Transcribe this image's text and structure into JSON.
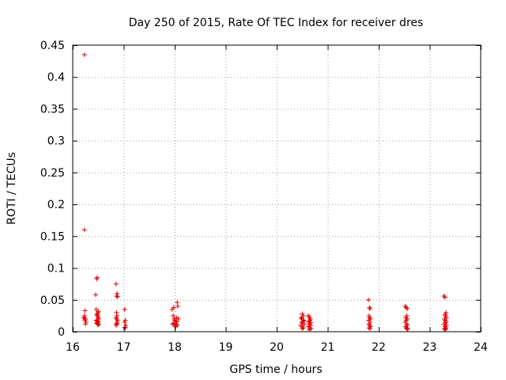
{
  "chart_data": {
    "type": "scatter",
    "title": "Day 250 of 2015, Rate Of TEC Index for receiver dres",
    "xlabel": "GPS time / hours",
    "ylabel": "ROTI / TECUs",
    "xlim": [
      16,
      24
    ],
    "ylim": [
      0,
      0.45
    ],
    "xticks": [
      16,
      17,
      18,
      19,
      20,
      21,
      22,
      23,
      24
    ],
    "yticks": [
      0,
      0.05,
      0.1,
      0.15,
      0.2,
      0.25,
      0.3,
      0.35,
      0.4,
      0.45
    ],
    "xtick_labels": [
      "16",
      "17",
      "18",
      "19",
      "20",
      "21",
      "22",
      "23",
      "24"
    ],
    "ytick_labels": [
      "0",
      "0.05",
      "0.1",
      "0.15",
      "0.2",
      "0.25",
      "0.3",
      "0.35",
      "0.4",
      "0.45"
    ],
    "grid": true,
    "marker": "+",
    "color": "#e00000",
    "series": [
      {
        "name": "ROTI",
        "x": [
          16.23,
          16.23,
          16.24,
          16.23,
          16.22,
          16.25,
          16.24,
          16.26,
          16.25,
          16.22,
          16.24,
          16.45,
          16.47,
          16.48,
          16.46,
          16.5,
          16.5,
          16.48,
          16.47,
          16.49,
          16.5,
          16.51,
          16.46,
          16.48,
          16.49,
          16.5,
          16.47,
          16.48,
          16.5,
          16.49,
          16.51,
          16.85,
          16.87,
          16.86,
          16.88,
          16.86,
          16.87,
          16.85,
          16.86,
          16.88,
          16.87,
          16.86,
          16.87,
          16.85,
          17.02,
          17.03,
          17.02,
          17.04,
          17.03,
          17.02,
          17.95,
          17.98,
          17.97,
          17.99,
          18.0,
          18.02,
          18.05,
          18.06,
          18.04,
          18.03,
          17.96,
          18.0,
          18.02,
          18.05,
          17.98,
          18.04,
          18.07,
          20.5,
          20.52,
          20.48,
          20.5,
          20.53,
          20.49,
          20.51,
          20.54,
          20.47,
          20.5,
          20.52,
          20.5,
          20.53,
          20.49,
          20.62,
          20.64,
          20.66,
          20.65,
          20.63,
          20.67,
          20.64,
          20.66,
          20.62,
          20.65,
          20.67,
          20.64,
          20.63,
          20.66,
          21.8,
          21.82,
          21.83,
          21.81,
          21.82,
          21.84,
          21.8,
          21.83,
          21.81,
          21.82,
          21.84,
          21.81,
          21.83,
          22.52,
          22.54,
          22.56,
          22.55,
          22.53,
          22.56,
          22.54,
          22.52,
          22.55,
          22.56,
          22.53,
          22.54,
          22.55,
          22.57,
          23.28,
          23.3,
          23.32,
          23.3,
          23.31,
          23.33,
          23.29,
          23.3,
          23.32,
          23.31,
          23.28,
          23.33,
          23.3,
          23.32,
          23.29,
          23.31,
          23.3
        ],
        "y": [
          0.435,
          0.16,
          0.033,
          0.025,
          0.022,
          0.02,
          0.018,
          0.015,
          0.012,
          0.022,
          0.02,
          0.058,
          0.083,
          0.085,
          0.035,
          0.032,
          0.03,
          0.028,
          0.026,
          0.025,
          0.022,
          0.02,
          0.018,
          0.017,
          0.016,
          0.015,
          0.014,
          0.013,
          0.012,
          0.012,
          0.011,
          0.075,
          0.06,
          0.056,
          0.055,
          0.03,
          0.025,
          0.022,
          0.02,
          0.018,
          0.015,
          0.013,
          0.012,
          0.01,
          0.035,
          0.018,
          0.015,
          0.01,
          0.006,
          0.007,
          0.035,
          0.038,
          0.025,
          0.02,
          0.018,
          0.015,
          0.046,
          0.04,
          0.022,
          0.012,
          0.012,
          0.01,
          0.008,
          0.01,
          0.013,
          0.016,
          0.02,
          0.028,
          0.025,
          0.022,
          0.02,
          0.018,
          0.015,
          0.014,
          0.012,
          0.01,
          0.008,
          0.006,
          0.005,
          0.017,
          0.02,
          0.025,
          0.023,
          0.02,
          0.018,
          0.016,
          0.014,
          0.012,
          0.01,
          0.008,
          0.006,
          0.005,
          0.003,
          0.015,
          0.02,
          0.05,
          0.038,
          0.036,
          0.025,
          0.022,
          0.02,
          0.018,
          0.015,
          0.012,
          0.01,
          0.008,
          0.006,
          0.005,
          0.04,
          0.038,
          0.036,
          0.025,
          0.022,
          0.02,
          0.018,
          0.015,
          0.012,
          0.01,
          0.008,
          0.006,
          0.005,
          0.004,
          0.056,
          0.054,
          0.03,
          0.027,
          0.025,
          0.022,
          0.02,
          0.018,
          0.016,
          0.014,
          0.012,
          0.01,
          0.008,
          0.006,
          0.005,
          0.004,
          0.003
        ]
      }
    ]
  }
}
